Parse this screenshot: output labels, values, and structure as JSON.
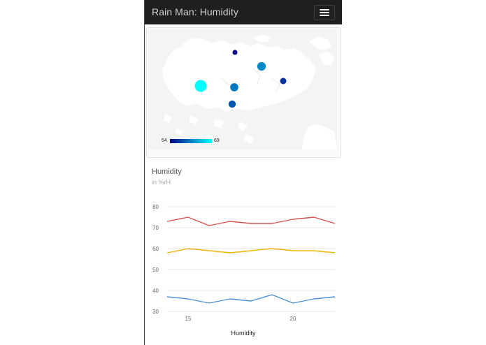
{
  "app": {
    "title": "Rain Man: Humidity"
  },
  "nav": {
    "menu_icon": "hamburger-menu-icon"
  },
  "map": {
    "legend": {
      "min": "54",
      "max": "69",
      "min_color": "#00008b",
      "max_color": "#00ffff"
    },
    "stations": [
      {
        "value": 54
      },
      {
        "value": 62
      },
      {
        "value": 57
      },
      {
        "value": 69
      },
      {
        "value": 61
      },
      {
        "value": 59
      }
    ]
  },
  "chart": {
    "title": "Humidity",
    "subtitle": "in %rH"
  },
  "chart_data": {
    "type": "line",
    "title": "Humidity",
    "subtitle": "in %rH",
    "xlabel": "Humidity",
    "ylabel": "",
    "ylim": [
      30,
      80
    ],
    "xlim": [
      14,
      22
    ],
    "yticks": [
      30,
      40,
      50,
      60,
      70,
      80
    ],
    "xticks": [
      15,
      20
    ],
    "grid": true,
    "x": [
      14,
      15,
      16,
      17,
      18,
      19,
      20,
      21,
      22
    ],
    "series": [
      {
        "color": "#d9534f",
        "values": [
          73,
          75,
          71,
          73,
          72,
          72,
          74,
          75,
          72
        ]
      },
      {
        "color": "#f0b400",
        "values": [
          58,
          60,
          59,
          58,
          59,
          60,
          59,
          59,
          58
        ]
      },
      {
        "color": "#4a90d9",
        "values": [
          37,
          36,
          34,
          36,
          35,
          38,
          34,
          36,
          37
        ]
      }
    ]
  }
}
